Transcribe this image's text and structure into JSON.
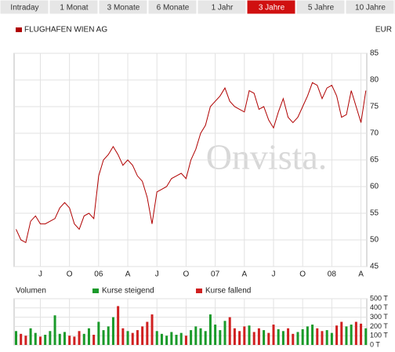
{
  "tabs": [
    "Intraday",
    "1 Monat",
    "3 Monate",
    "6 Monate",
    "1 Jahr",
    "3 Jahre",
    "5 Jahre",
    "10 Jahre"
  ],
  "active_tab": 5,
  "watermark": "Onvista.",
  "chart_data": [
    {
      "type": "line",
      "currency": "EUR",
      "x": [
        0.5,
        1,
        1.5,
        2,
        2.5,
        3,
        3.5,
        4,
        4.5,
        5,
        5.5,
        6,
        6.5,
        7,
        7.5,
        8,
        8.5,
        9,
        9.5,
        10,
        10.5,
        11,
        11.5,
        12,
        12.5,
        13,
        13.5,
        14,
        14.5,
        15,
        15.5,
        16,
        16.5,
        17,
        17.5,
        18,
        18.5,
        19,
        19.5,
        20,
        20.5,
        21,
        21.5,
        22,
        22.5,
        23,
        23.5,
        24,
        24.5,
        25,
        25.5,
        26,
        26.5,
        27,
        27.5,
        28,
        28.5,
        29,
        29.5,
        30,
        30.5,
        31,
        31.5,
        32,
        32.5,
        33,
        33.5,
        34,
        34.5,
        35,
        35.5,
        36,
        36.5
      ],
      "series": [
        {
          "name": "FLUGHAFEN WIEN AG",
          "color": "#b00000",
          "values": [
            52,
            50,
            49.5,
            53.5,
            54.5,
            53,
            53,
            53.5,
            54,
            56,
            57,
            56,
            53,
            52,
            54.5,
            55,
            54,
            62,
            65,
            66,
            67.5,
            66,
            64,
            65,
            64,
            62,
            61,
            58,
            53,
            59,
            59.5,
            60,
            61.5,
            62,
            62.5,
            61.5,
            65,
            67,
            70,
            71.5,
            75,
            76,
            77,
            78.5,
            76,
            75,
            74.5,
            74,
            78,
            77.5,
            74.5,
            75,
            72.5,
            71,
            74,
            76.5,
            73,
            72,
            73,
            75,
            77,
            79.5,
            79,
            76.5,
            78.5,
            79,
            77,
            73,
            73.5,
            78,
            75,
            72,
            78
          ]
        }
      ],
      "xlim": [
        0.3,
        36.6
      ],
      "xticks": [
        {
          "value": 3,
          "label": "J"
        },
        {
          "value": 6,
          "label": "O"
        },
        {
          "value": 9,
          "label": "06"
        },
        {
          "value": 12,
          "label": "A"
        },
        {
          "value": 15,
          "label": "J"
        },
        {
          "value": 18,
          "label": "O"
        },
        {
          "value": 21,
          "label": "07"
        },
        {
          "value": 24,
          "label": "A"
        },
        {
          "value": 27,
          "label": "J"
        },
        {
          "value": 30,
          "label": "O"
        },
        {
          "value": 33,
          "label": "08"
        },
        {
          "value": 36,
          "label": "A"
        }
      ],
      "ylim": [
        45,
        85
      ],
      "yticks": [
        45,
        50,
        55,
        60,
        65,
        70,
        75,
        80,
        85
      ],
      "grid": true
    },
    {
      "type": "bar",
      "title": "Volumen",
      "x": [
        0.5,
        1,
        1.5,
        2,
        2.5,
        3,
        3.5,
        4,
        4.5,
        5,
        5.5,
        6,
        6.5,
        7,
        7.5,
        8,
        8.5,
        9,
        9.5,
        10,
        10.5,
        11,
        11.5,
        12,
        12.5,
        13,
        13.5,
        14,
        14.5,
        15,
        15.5,
        16,
        16.5,
        17,
        17.5,
        18,
        18.5,
        19,
        19.5,
        20,
        20.5,
        21,
        21.5,
        22,
        22.5,
        23,
        23.5,
        24,
        24.5,
        25,
        25.5,
        26,
        26.5,
        27,
        27.5,
        28,
        28.5,
        29,
        29.5,
        30,
        30.5,
        31,
        31.5,
        32,
        32.5,
        33,
        33.5,
        34,
        34.5,
        35,
        35.5,
        36,
        36.5
      ],
      "series": [
        {
          "name": "Kurse steigend",
          "color": "#1a9a2a",
          "values": [
            150,
            null,
            null,
            180,
            130,
            null,
            110,
            150,
            320,
            120,
            140,
            null,
            null,
            null,
            120,
            180,
            null,
            250,
            160,
            200,
            300,
            null,
            null,
            150,
            null,
            null,
            null,
            null,
            null,
            150,
            120,
            100,
            140,
            110,
            130,
            null,
            160,
            200,
            180,
            150,
            330,
            220,
            160,
            260,
            null,
            null,
            null,
            null,
            210,
            null,
            null,
            160,
            null,
            null,
            170,
            150,
            null,
            null,
            140,
            170,
            200,
            220,
            null,
            null,
            160,
            130,
            null,
            null,
            200,
            220,
            null,
            null,
            180
          ]
        },
        {
          "name": "Kurse fallend",
          "color": "#d02020",
          "values": [
            null,
            120,
            100,
            null,
            null,
            90,
            null,
            null,
            null,
            null,
            null,
            100,
            90,
            150,
            null,
            null,
            110,
            null,
            null,
            null,
            null,
            420,
            180,
            null,
            130,
            160,
            200,
            250,
            330,
            null,
            null,
            null,
            null,
            null,
            null,
            100,
            null,
            null,
            null,
            null,
            null,
            null,
            null,
            null,
            300,
            180,
            150,
            200,
            null,
            140,
            180,
            null,
            130,
            220,
            null,
            null,
            180,
            120,
            null,
            null,
            null,
            null,
            180,
            150,
            null,
            null,
            210,
            250,
            null,
            null,
            250,
            230,
            null
          ]
        }
      ],
      "xlim": [
        0.3,
        36.6
      ],
      "ylim": [
        0,
        500
      ],
      "yticks": [
        {
          "value": 0,
          "label": "0 T"
        },
        {
          "value": 100,
          "label": "100 T"
        },
        {
          "value": 200,
          "label": "200 T"
        },
        {
          "value": 300,
          "label": "300 T"
        },
        {
          "value": 400,
          "label": "400 T"
        },
        {
          "value": 500,
          "label": "500 T"
        }
      ],
      "grid": true
    }
  ]
}
